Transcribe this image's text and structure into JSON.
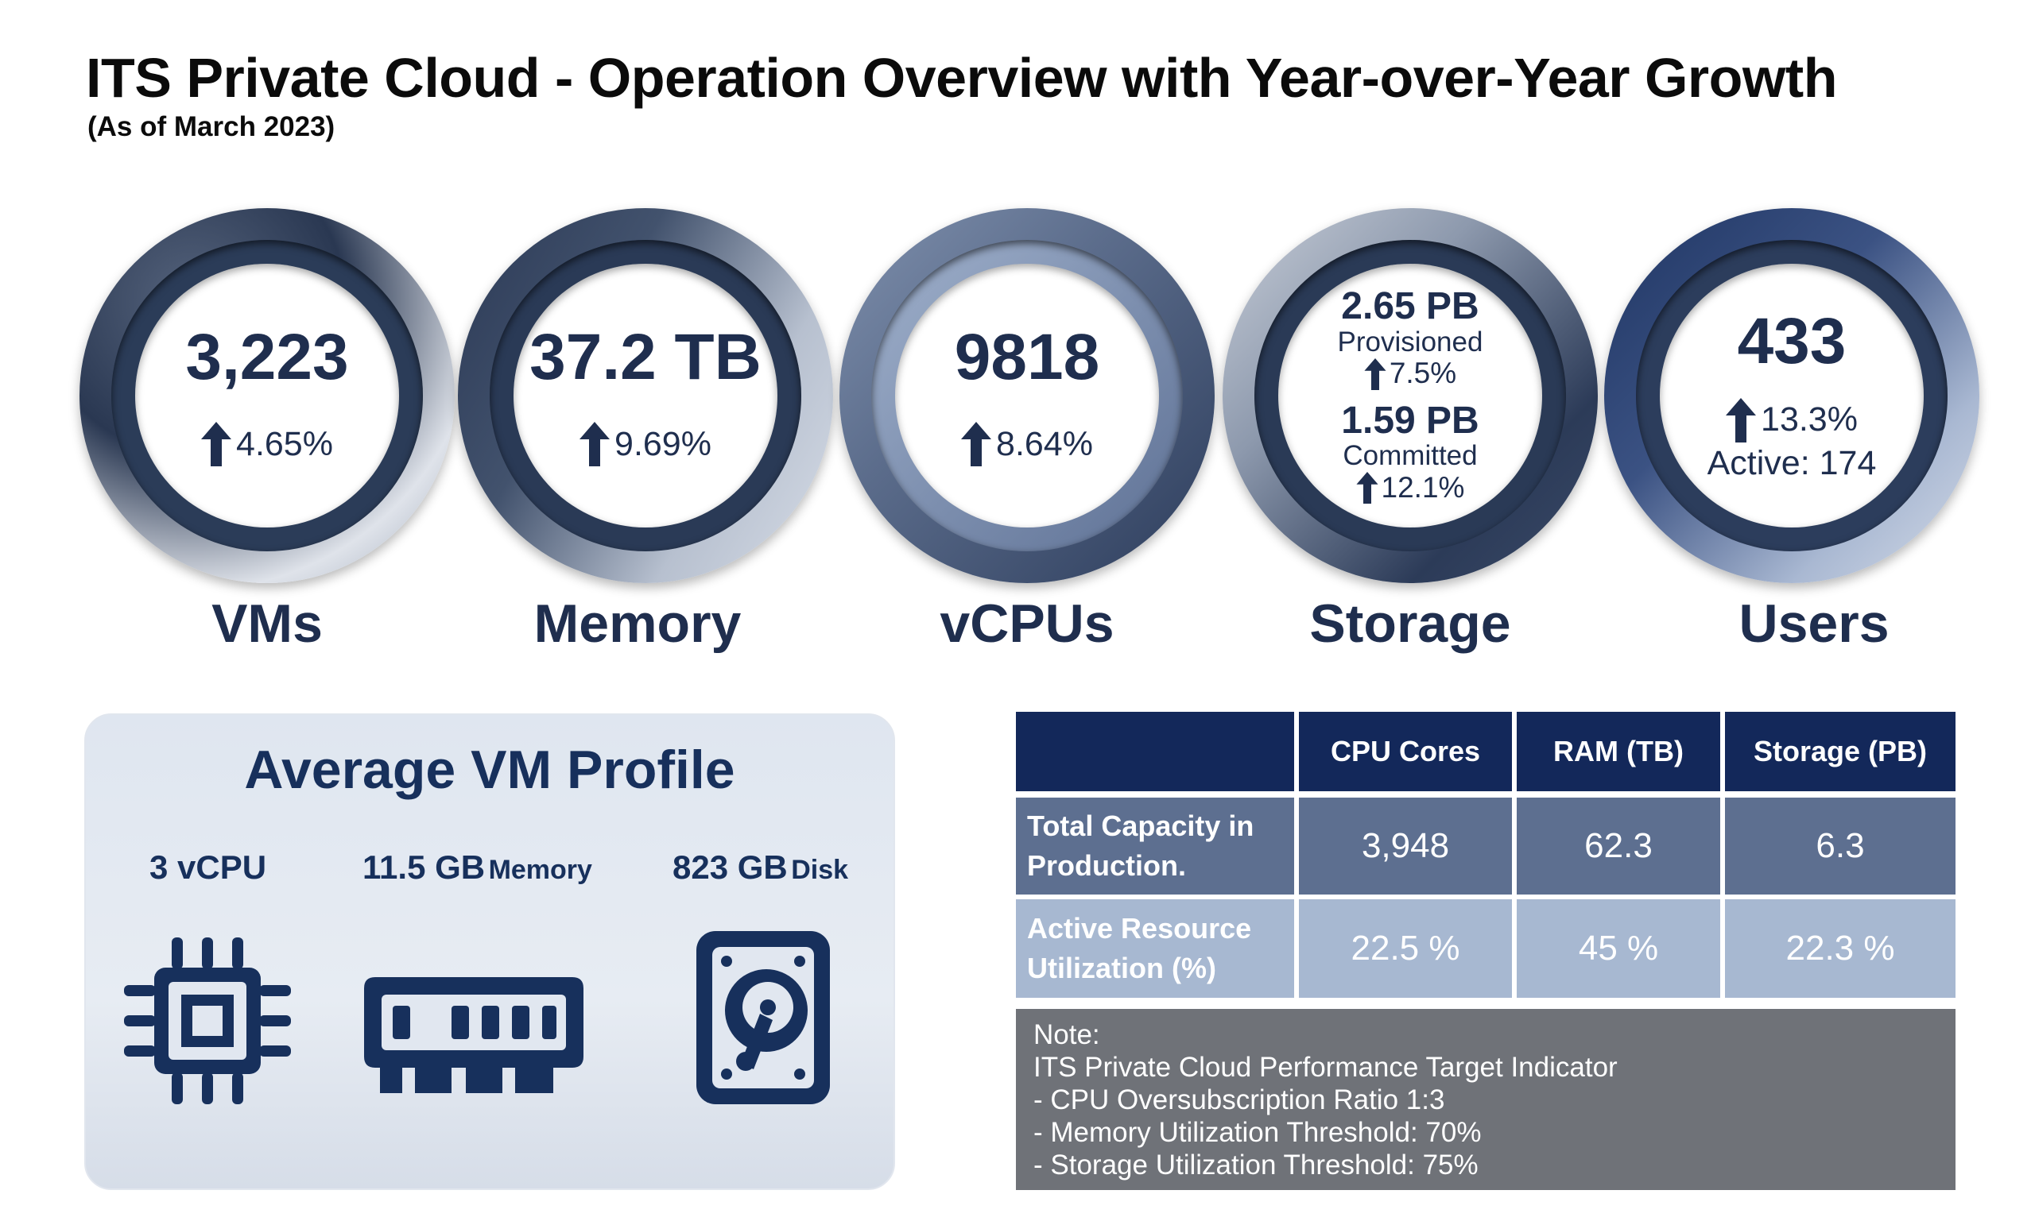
{
  "title": "ITS Private Cloud - Operation Overview with Year-over-Year Growth",
  "subtitle": "(As of March 2023)",
  "kpis": {
    "vms": {
      "value": "3,223",
      "growth": "4.65%",
      "label": "VMs"
    },
    "memory": {
      "value": "37.2 TB",
      "growth": "9.69%",
      "label": "Memory"
    },
    "vcpus": {
      "value": "9818",
      "growth": "8.64%",
      "label": "vCPUs"
    },
    "storage": {
      "provisioned_value": "2.65 PB",
      "provisioned_label": "Provisioned",
      "provisioned_growth": "7.5%",
      "committed_value": "1.59 PB",
      "committed_label": "Committed",
      "committed_growth": "12.1%",
      "label": "Storage"
    },
    "users": {
      "value": "433",
      "growth": "13.3%",
      "active": "Active: 174",
      "label": "Users"
    }
  },
  "vm_profile": {
    "title": "Average VM Profile",
    "cpu": {
      "value": "3 vCPU",
      "unit": ""
    },
    "memory": {
      "value": "11.5 GB",
      "unit": "Memory"
    },
    "disk": {
      "value": "823 GB",
      "unit": "Disk"
    }
  },
  "capacity_table": {
    "headers": [
      "",
      "CPU Cores",
      "RAM (TB)",
      "Storage (PB)"
    ],
    "rows": [
      {
        "label": "Total Capacity in Production.",
        "values": [
          "3,948",
          "62.3",
          "6.3"
        ]
      },
      {
        "label": "Active Resource Utilization (%)",
        "values": [
          "22.5 %",
          "45 %",
          "22.3 %"
        ]
      }
    ]
  },
  "note": {
    "lines": [
      "Note:",
      "ITS Private Cloud Performance Target Indicator",
      "- CPU Oversubscription Ratio 1:3",
      "- Memory Utilization Threshold: 70%",
      "- Storage Utilization Threshold: 75%"
    ]
  },
  "colors": {
    "navy": "#1f2e4e",
    "header": "#13285a",
    "row1": "#5d6f90",
    "row2": "#a7b8d1",
    "note": "#6f7278"
  }
}
